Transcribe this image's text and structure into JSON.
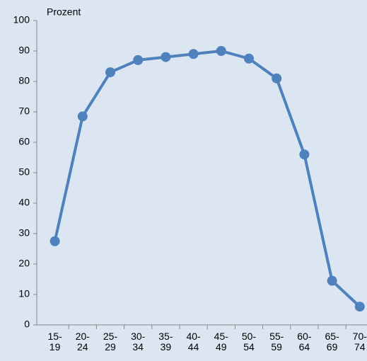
{
  "chart_data": {
    "type": "line",
    "y_axis_label": "Prozent",
    "categories": [
      "15-19",
      "20-24",
      "25-29",
      "30-34",
      "35-39",
      "40-44",
      "45-49",
      "50-54",
      "55-59",
      "60-64",
      "65-69",
      "70-74"
    ],
    "series": [
      {
        "color": "#4f81bd",
        "values": [
          27.5,
          68.5,
          83,
          87,
          88,
          89,
          90,
          87.5,
          81,
          56,
          14.5,
          6
        ]
      }
    ],
    "ylim": [
      0,
      100
    ],
    "yticks": [
      0,
      10,
      20,
      30,
      40,
      50,
      60,
      70,
      80,
      90,
      100
    ],
    "grid": false
  }
}
